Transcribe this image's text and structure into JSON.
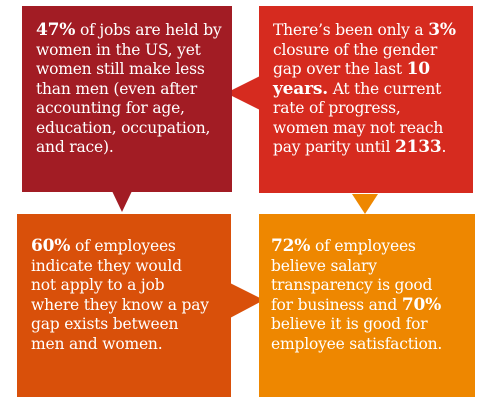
{
  "colors": {
    "top_left": "#a21c24",
    "top_right": "#d62b1f",
    "bottom_left": "#d9500a",
    "bottom_right": "#ee8700"
  },
  "boxes": {
    "top_left": {
      "stat": "47%",
      "lines": [
        " of jobs are held by",
        "women in the US, yet",
        "women still make less",
        "than men (even after",
        "accounting for age,",
        "education, occupation,",
        "and race)."
      ]
    },
    "top_right": {
      "line1_a": "There’s been only a ",
      "stat1": "3%",
      "line2": "closure of the gender",
      "line3_a": "gap over the last ",
      "stat2": "10",
      "stat3": "years.",
      "line4_b": " At the current",
      "line5": "rate of progress,",
      "line6": "women may not reach",
      "line7_a": "pay parity until ",
      "stat4": "2133",
      "line7_c": "."
    },
    "bottom_left": {
      "stat": "60%",
      "lines": [
        " of employees",
        "indicate they would",
        "not apply to a job",
        "where they know a pay",
        "gap exists between",
        "men and women."
      ]
    },
    "bottom_right": {
      "stat1": "72%",
      "line1_b": " of employees",
      "line2": "believe salary",
      "line3": "transparency is good",
      "line4_a": "for business and ",
      "stat2": "70%",
      "line5": "believe it is good for",
      "line6": "employee satisfaction."
    }
  }
}
